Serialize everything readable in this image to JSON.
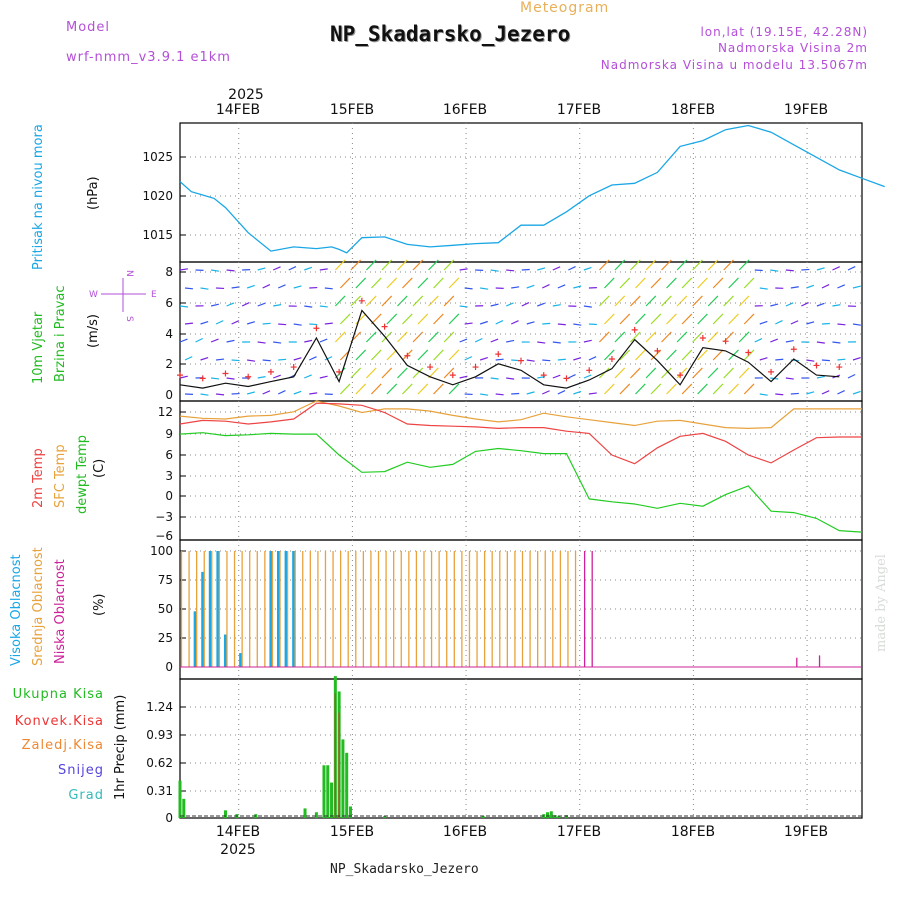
{
  "header": {
    "model_label": "Model",
    "model_name": "wrf-nmm_v3.9.1 e1km",
    "subtitle": "Meteogram",
    "title": "NP_Skadarsko_Jezero",
    "lonlat": "lon,lat (19.15E, 42.28N)",
    "elevation": "Nadmorska Visina 2m",
    "model_elevation": "Nadmorska Visina u modelu 13.5067m"
  },
  "footer": {
    "station": "NP_Skadarsko_Jezero",
    "credit": "made by Angel"
  },
  "colors": {
    "pressure": "#1aa7e6",
    "wind_speed": "#111111",
    "gust": "#ee3333",
    "temp2m": "#ee4444",
    "sfc": "#e8a23c",
    "dew": "#22cc22",
    "high_cloud": "#1aa7e6",
    "mid_cloud": "#e8a23c",
    "low_cloud": "#cc2299",
    "total": "#22bb22",
    "conv": "#ee3333",
    "frozen": "#ee8833",
    "snow": "#5544dd",
    "graupel": "#33bbbb"
  },
  "time_axis": {
    "year_top": "2025",
    "year_bottom": "2025",
    "days": [
      "14FEB",
      "15FEB",
      "16FEB",
      "17FEB",
      "18FEB",
      "19FEB"
    ]
  },
  "panels": {
    "pressure": {
      "ylabel": "Pritisak na nivou mora",
      "unit": "(hPa)",
      "ticks": [
        "1025",
        "1020",
        "1015"
      ]
    },
    "wind": {
      "ylabel1": "10m Vjetar",
      "ylabel2": "Brzina i Pravac",
      "unit": "(m/s)",
      "ticks": [
        "8",
        "6",
        "4",
        "2",
        "0"
      ],
      "compass": {
        "n": "N",
        "s": "S",
        "e": "E",
        "w": "W"
      }
    },
    "temperature": {
      "label_2m": "2m Temp",
      "label_sfc": "SFC Temp",
      "label_dew": "dewpt Temp",
      "unit": "(C)",
      "ticks": [
        "12",
        "9",
        "6",
        "3",
        "0",
        "−3",
        "−6"
      ]
    },
    "cloud": {
      "label_high": "Visoka Oblacnost",
      "label_mid": "Srednja Oblacnost",
      "label_low": "Niska Oblacnost",
      "unit": "(%)",
      "ticks": [
        "100",
        "75",
        "50",
        "25",
        "0"
      ]
    },
    "precip": {
      "label_total": "Ukupna Kisa",
      "label_conv": "Konvek.Kisa",
      "label_frozen": "Zaledj.Kisa",
      "label_snow": "Snijeg",
      "label_graupel": "Grad",
      "unit": "1hr Precip (mm)",
      "ticks": [
        "1.24",
        "0.93",
        "0.62",
        "0.31",
        "0"
      ]
    }
  },
  "chart_data": [
    {
      "type": "line",
      "ylabel": "Pritisak na nivou mora (hPa)",
      "ylim": [
        1012,
        1028.6
      ],
      "x": [
        0,
        3,
        6,
        9,
        12,
        18,
        24,
        30,
        36,
        40,
        42,
        44,
        48,
        54,
        60,
        66,
        72,
        78,
        84,
        90,
        96,
        102,
        108,
        114,
        120,
        126,
        132,
        138,
        144,
        150,
        156,
        162,
        168,
        174,
        180,
        186
      ],
      "series": [
        {
          "values": [
            1021.6,
            1020.4,
            1020,
            1019.6,
            1018.5,
            1015.5,
            1013.3,
            1013.8,
            1013.6,
            1013.8,
            1013.5,
            1013.1,
            1014.9,
            1015,
            1014.1,
            1013.8,
            1014,
            1014.2,
            1014.3,
            1016.4,
            1016.4,
            1018,
            1019.9,
            1021.2,
            1021.4,
            1022.7,
            1025.8,
            1026.5,
            1027.8,
            1028.3,
            1027.5,
            1026,
            1024.5,
            1023,
            1022,
            1021
          ]
        }
      ]
    },
    {
      "type": "line",
      "ylabel": "10m Vjetar Brzina i Pravac (m/s)",
      "ylim": [
        0,
        8.6
      ],
      "x": [
        0,
        6,
        12,
        18,
        24,
        30,
        36,
        42,
        48,
        54,
        60,
        66,
        72,
        78,
        84,
        90,
        96,
        102,
        108,
        114,
        120,
        126,
        132,
        138,
        144,
        150,
        156,
        162,
        168,
        174
      ],
      "series": [
        {
          "values": [
            1,
            0.8,
            1.1,
            0.9,
            1.2,
            1.5,
            3.9,
            1.2,
            5.6,
            4,
            2.2,
            1.5,
            1,
            1.5,
            2.3,
            1.9,
            1,
            0.8,
            1.3,
            2,
            3.8,
            2.5,
            1,
            3.3,
            3.1,
            2.4,
            1.2,
            2.6,
            1.6,
            1.5
          ]
        }
      ]
    },
    {
      "type": "line",
      "ylabel": "(C)",
      "ylim": [
        -6.3,
        13
      ],
      "x": [
        0,
        6,
        12,
        18,
        24,
        30,
        36,
        42,
        48,
        54,
        60,
        66,
        72,
        78,
        84,
        90,
        96,
        102,
        108,
        114,
        120,
        126,
        132,
        138,
        144,
        150,
        156,
        162,
        168,
        174,
        180
      ],
      "series": [
        {
          "name": "2m Temp",
          "values": [
            9.8,
            10.3,
            10.2,
            9.8,
            10.1,
            10.5,
            12.7,
            12.6,
            12.4,
            11.4,
            9.8,
            9.6,
            9.5,
            9.4,
            9.2,
            9.3,
            9.3,
            8.8,
            8.5,
            5.5,
            4.3,
            6.5,
            8.1,
            8.5,
            7.4,
            5.5,
            4.4,
            6.2,
            7.9,
            8,
            8
          ]
        },
        {
          "name": "SFC Temp",
          "values": [
            10.9,
            10.6,
            10.5,
            10.9,
            11,
            11.5,
            13,
            12.3,
            11.4,
            11.9,
            11.9,
            11.6,
            11,
            10.5,
            10.1,
            10.4,
            11.3,
            10.8,
            10.4,
            10,
            9.6,
            10.2,
            10.3,
            9.8,
            9.3,
            9.2,
            9.3,
            11.9,
            11.9,
            11.9,
            11.9
          ]
        },
        {
          "name": "dewpt Temp",
          "values": [
            8.4,
            8.6,
            8.2,
            8.3,
            8.5,
            8.4,
            8.4,
            5.5,
            3.1,
            3.2,
            4.5,
            3.8,
            4.2,
            6,
            6.4,
            6.1,
            5.7,
            5.7,
            -0.6,
            -1,
            -1.3,
            -1.9,
            -1.2,
            -1.6,
            0,
            1.2,
            -2.3,
            -2.5,
            -3.3,
            -5,
            -5.2
          ]
        }
      ]
    },
    {
      "type": "bar",
      "ylabel": "(%)",
      "ylim": [
        0,
        100
      ],
      "x": [
        0,
        2,
        4,
        6,
        8,
        10,
        12,
        14,
        16,
        18,
        20,
        22,
        24,
        26,
        28,
        30,
        32,
        34,
        36,
        38,
        40,
        42,
        44,
        46,
        48,
        50,
        52,
        54,
        56,
        58,
        60,
        62,
        64,
        66,
        68,
        70,
        72,
        74,
        76,
        78,
        80,
        82,
        84,
        86,
        88,
        90,
        92,
        94,
        96,
        98,
        100,
        102,
        104,
        106,
        108,
        110,
        112,
        114,
        116,
        118,
        120,
        122,
        124,
        126,
        128,
        130,
        132,
        134,
        136,
        138,
        140,
        142,
        144,
        146,
        148,
        150,
        152,
        154,
        156,
        158,
        160,
        162,
        164,
        166,
        168,
        170,
        172,
        174,
        176,
        178,
        180
      ],
      "series": [
        {
          "name": "Visoka Oblacnost",
          "values": [
            0,
            0,
            48,
            82,
            100,
            100,
            28,
            0,
            12,
            0,
            0,
            0,
            100,
            100,
            100,
            100,
            0,
            0,
            0,
            0,
            0,
            0,
            0,
            0,
            0,
            0,
            0,
            0,
            0,
            0,
            0,
            0,
            0,
            0,
            0,
            0,
            0,
            0,
            0,
            0,
            0,
            0,
            0,
            0,
            0,
            0,
            0,
            0,
            0,
            0,
            0,
            0,
            0,
            0,
            0,
            0,
            0,
            0,
            0,
            0,
            0,
            0,
            0,
            0,
            0,
            0,
            0,
            0,
            0,
            0,
            0,
            0,
            0,
            0,
            0,
            0,
            0,
            0,
            0,
            0,
            0,
            0,
            0,
            0,
            0,
            0,
            0,
            0,
            0,
            0,
            0
          ]
        },
        {
          "name": "Srednja Oblacnost",
          "values": [
            100,
            100,
            100,
            100,
            100,
            100,
            100,
            100,
            100,
            100,
            100,
            100,
            100,
            100,
            100,
            100,
            100,
            100,
            100,
            100,
            100,
            100,
            100,
            100,
            100,
            100,
            100,
            100,
            100,
            100,
            100,
            100,
            100,
            100,
            100,
            100,
            100,
            100,
            100,
            100,
            100,
            100,
            100,
            100,
            100,
            100,
            100,
            100,
            100,
            100,
            100,
            100,
            100,
            0,
            0,
            0,
            0,
            0,
            0,
            0,
            0,
            0,
            0,
            0,
            0,
            0,
            0,
            0,
            0,
            0,
            0,
            0,
            0,
            0,
            0,
            0,
            0,
            0,
            0,
            0,
            0,
            0,
            0,
            0,
            0,
            0,
            0,
            0,
            0,
            0,
            0
          ]
        },
        {
          "name": "Niska Oblacnost",
          "values": [
            0,
            0,
            0,
            0,
            0,
            0,
            0,
            0,
            0,
            0,
            0,
            0,
            0,
            0,
            0,
            0,
            0,
            0,
            0,
            0,
            0,
            0,
            0,
            0,
            0,
            0,
            0,
            0,
            0,
            0,
            0,
            0,
            0,
            0,
            0,
            0,
            0,
            0,
            0,
            0,
            0,
            0,
            0,
            0,
            0,
            0,
            0,
            0,
            0,
            0,
            0,
            0,
            0,
            100,
            100,
            0,
            0,
            0,
            0,
            0,
            0,
            0,
            0,
            0,
            0,
            0,
            0,
            0,
            0,
            0,
            0,
            0,
            0,
            0,
            0,
            0,
            0,
            0,
            0,
            0,
            0,
            8,
            0,
            0,
            10,
            0,
            0,
            0,
            0,
            0,
            0
          ]
        }
      ]
    },
    {
      "type": "bar",
      "ylabel": "1hr Precip (mm)",
      "ylim": [
        0,
        1.45
      ],
      "x": [
        0,
        1,
        2,
        12,
        15,
        20,
        33,
        36,
        38,
        39,
        40,
        41,
        42,
        43,
        44,
        45,
        46,
        47,
        48,
        49,
        50,
        54,
        80,
        96,
        97,
        98,
        99,
        100,
        102
      ],
      "series": [
        {
          "name": "Ukupna Kisa",
          "values": [
            0.39,
            0.2,
            0,
            0.08,
            0.04,
            0.04,
            0.1,
            0.06,
            0.55,
            0.55,
            0.37,
            1.48,
            1.32,
            0.82,
            0.68,
            0.12,
            0,
            0,
            0,
            0,
            0,
            0.02,
            0.02,
            0.04,
            0.06,
            0.07,
            0.03,
            0.02,
            0.03
          ]
        },
        {
          "name": "Konvek.Kisa",
          "values": [
            0,
            0,
            0,
            0,
            0,
            0,
            0,
            0,
            0,
            0,
            0,
            1.3,
            1.1,
            0,
            0,
            0,
            0,
            0,
            0,
            0,
            0,
            0,
            0,
            0,
            0,
            0,
            0,
            0,
            0
          ]
        }
      ]
    }
  ]
}
